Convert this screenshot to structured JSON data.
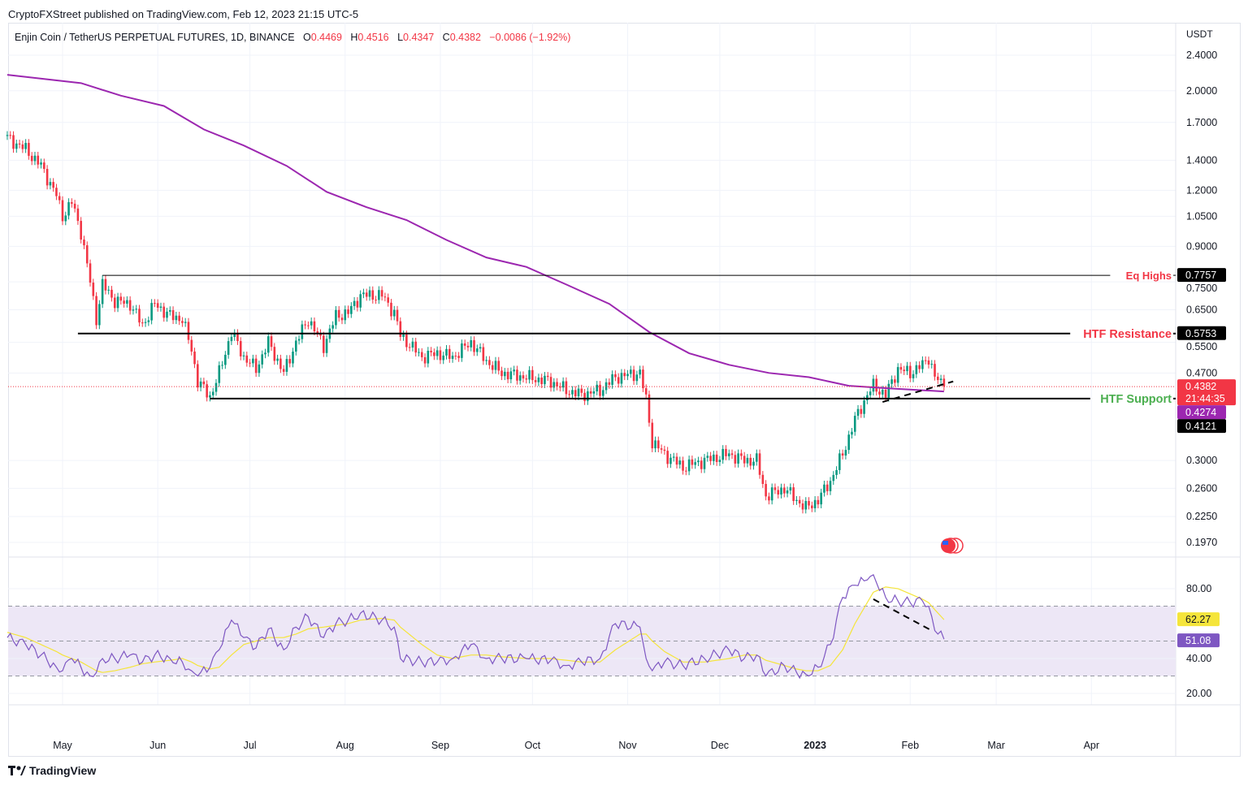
{
  "publisher_line": "CryptoFXStreet published on TradingView.com, Feb 12, 2023 21:15 UTC-5",
  "legend": {
    "symbol": "Enjin Coin / TetherUS PERPETUAL FUTURES, 1D, BINANCE",
    "o_label": "O",
    "o": "0.4469",
    "h_label": "H",
    "h": "0.4516",
    "l_label": "L",
    "l": "0.4347",
    "c_label": "C",
    "c": "0.4382",
    "change": "−0.0086 (−1.92%)"
  },
  "footer": {
    "brand": "TradingView"
  },
  "colors": {
    "up": "#089981",
    "down": "#f23645",
    "ma": "#9c27b0",
    "rsi": "#7e57c2",
    "rsi_ma": "#f5e53b",
    "rsi_band": "#ede7f6",
    "resistance_label": "#f23645",
    "support_label": "#4caf50"
  },
  "chart_data": {
    "type": "candlestick",
    "currency": "USDT",
    "price_scale": "log",
    "ylim": [
      0.197,
      2.4
    ],
    "price_ticks": [
      "2.4000",
      "2.0000",
      "1.7000",
      "1.4000",
      "1.2000",
      "1.0500",
      "0.9000",
      "0.7500",
      "0.6500",
      "0.5500",
      "0.4700",
      "0.3000",
      "0.2600",
      "0.2250",
      "0.1970"
    ],
    "time_ticks": [
      {
        "label": "May",
        "date": "2022-05-01"
      },
      {
        "label": "Jun",
        "date": "2022-06-01"
      },
      {
        "label": "Jul",
        "date": "2022-07-01"
      },
      {
        "label": "Aug",
        "date": "2022-08-01"
      },
      {
        "label": "Sep",
        "date": "2022-09-01"
      },
      {
        "label": "Oct",
        "date": "2022-10-01"
      },
      {
        "label": "Nov",
        "date": "2022-11-01"
      },
      {
        "label": "Dec",
        "date": "2022-12-01"
      },
      {
        "label": "2023",
        "date": "2023-01-01",
        "bold": true
      },
      {
        "label": "Feb",
        "date": "2023-02-01"
      },
      {
        "label": "Mar",
        "date": "2023-03-01"
      },
      {
        "label": "Apr",
        "date": "2023-04-01"
      }
    ],
    "closes": [
      [
        "2022-04-13",
        1.57
      ],
      [
        "2022-04-19",
        1.48
      ],
      [
        "2022-04-24",
        1.36
      ],
      [
        "2022-04-29",
        1.17
      ],
      [
        "2022-05-01",
        1.05
      ],
      [
        "2022-05-04",
        1.13
      ],
      [
        "2022-05-07",
        0.97
      ],
      [
        "2022-05-10",
        0.75
      ],
      [
        "2022-05-12",
        0.62
      ],
      [
        "2022-05-14",
        0.74
      ],
      [
        "2022-05-18",
        0.68
      ],
      [
        "2022-05-23",
        0.67
      ],
      [
        "2022-05-27",
        0.6
      ],
      [
        "2022-05-31",
        0.67
      ],
      [
        "2022-06-05",
        0.63
      ],
      [
        "2022-06-09",
        0.62
      ],
      [
        "2022-06-12",
        0.53
      ],
      [
        "2022-06-14",
        0.45
      ],
      [
        "2022-06-18",
        0.416
      ],
      [
        "2022-06-21",
        0.47
      ],
      [
        "2022-06-25",
        0.58
      ],
      [
        "2022-06-29",
        0.51
      ],
      [
        "2022-07-03",
        0.48
      ],
      [
        "2022-07-07",
        0.55
      ],
      [
        "2022-07-12",
        0.47
      ],
      [
        "2022-07-16",
        0.55
      ],
      [
        "2022-07-20",
        0.62
      ],
      [
        "2022-07-25",
        0.54
      ],
      [
        "2022-07-29",
        0.63
      ],
      [
        "2022-08-02",
        0.64
      ],
      [
        "2022-08-06",
        0.7
      ],
      [
        "2022-08-13",
        0.7
      ],
      [
        "2022-08-17",
        0.64
      ],
      [
        "2022-08-19",
        0.57
      ],
      [
        "2022-08-26",
        0.51
      ],
      [
        "2022-08-31",
        0.52
      ],
      [
        "2022-09-05",
        0.51
      ],
      [
        "2022-09-11",
        0.55
      ],
      [
        "2022-09-16",
        0.5
      ],
      [
        "2022-09-21",
        0.47
      ],
      [
        "2022-09-29",
        0.46
      ],
      [
        "2022-10-07",
        0.45
      ],
      [
        "2022-10-12",
        0.43
      ],
      [
        "2022-10-17",
        0.42
      ],
      [
        "2022-10-23",
        0.43
      ],
      [
        "2022-10-28",
        0.46
      ],
      [
        "2022-11-05",
        0.47
      ],
      [
        "2022-11-07",
        0.41
      ],
      [
        "2022-11-09",
        0.33
      ],
      [
        "2022-11-13",
        0.31
      ],
      [
        "2022-11-19",
        0.29
      ],
      [
        "2022-11-26",
        0.3
      ],
      [
        "2022-12-04",
        0.31
      ],
      [
        "2022-12-09",
        0.3
      ],
      [
        "2022-12-13",
        0.3
      ],
      [
        "2022-12-16",
        0.25
      ],
      [
        "2022-12-22",
        0.26
      ],
      [
        "2022-12-26",
        0.245
      ],
      [
        "2022-12-29",
        0.235
      ],
      [
        "2023-01-02",
        0.245
      ],
      [
        "2023-01-06",
        0.27
      ],
      [
        "2023-01-10",
        0.31
      ],
      [
        "2023-01-14",
        0.37
      ],
      [
        "2023-01-18",
        0.42
      ],
      [
        "2023-01-20",
        0.44
      ],
      [
        "2023-01-24",
        0.42
      ],
      [
        "2023-01-28",
        0.48
      ],
      [
        "2023-02-01",
        0.47
      ],
      [
        "2023-02-05",
        0.49
      ],
      [
        "2023-02-07",
        0.51
      ],
      [
        "2023-02-09",
        0.46
      ],
      [
        "2023-02-12",
        0.4382
      ]
    ],
    "ma200": [
      [
        "2022-04-13",
        2.17
      ],
      [
        "2022-05-07",
        2.08
      ],
      [
        "2022-05-20",
        1.95
      ],
      [
        "2022-06-03",
        1.85
      ],
      [
        "2022-06-16",
        1.64
      ],
      [
        "2022-06-29",
        1.51
      ],
      [
        "2022-07-13",
        1.36
      ],
      [
        "2022-07-26",
        1.19
      ],
      [
        "2022-08-08",
        1.1
      ],
      [
        "2022-08-21",
        1.03
      ],
      [
        "2022-09-03",
        0.93
      ],
      [
        "2022-09-16",
        0.85
      ],
      [
        "2022-09-29",
        0.81
      ],
      [
        "2022-10-12",
        0.74
      ],
      [
        "2022-10-26",
        0.67
      ],
      [
        "2022-11-08",
        0.58
      ],
      [
        "2022-11-21",
        0.52
      ],
      [
        "2022-12-04",
        0.49
      ],
      [
        "2022-12-17",
        0.47
      ],
      [
        "2022-12-30",
        0.46
      ],
      [
        "2023-01-12",
        0.44
      ],
      [
        "2023-01-26",
        0.434
      ],
      [
        "2023-02-12",
        0.4274
      ]
    ],
    "levels": [
      {
        "label": "Eq Highs",
        "value": 0.7757,
        "tag": "0.7757",
        "start": "2022-05-14",
        "color": "#f23645"
      },
      {
        "label": "HTF Resistance",
        "value": 0.5753,
        "tag": "0.5753",
        "start": "2022-05-06",
        "color": "#f23645"
      },
      {
        "label": "HTF Support",
        "value": 0.4121,
        "tag": "0.4121",
        "start": "2022-06-18",
        "color": "#4caf50"
      }
    ],
    "last_price": {
      "value": 0.4382,
      "tag": "0.4382",
      "countdown": "21:44:35"
    },
    "ma_tag": {
      "value": 0.4274,
      "tag": "0.4274"
    },
    "price_trendline": [
      [
        "2023-01-23",
        0.405
      ],
      [
        "2023-02-15",
        0.45
      ]
    ],
    "rsi": {
      "ylim": [
        14,
        92
      ],
      "ticks": [
        "80.00",
        "40.00",
        "20.00"
      ],
      "bands": [
        70,
        50,
        30
      ],
      "values": [
        52,
        48,
        42,
        35,
        33,
        40,
        35,
        30,
        32,
        40,
        40,
        42,
        38,
        42,
        40,
        38,
        33,
        30,
        35,
        45,
        62,
        52,
        46,
        57,
        45,
        58,
        64,
        52,
        60,
        62,
        66,
        62,
        58,
        40,
        38,
        38,
        40,
        48,
        40,
        40,
        40,
        39,
        36,
        38,
        40,
        60,
        58,
        40,
        33,
        38,
        36,
        40,
        45,
        40,
        42,
        30,
        36,
        32,
        31,
        35,
        48,
        75,
        82,
        85,
        88,
        75,
        73,
        72,
        73,
        70,
        56,
        51.08
      ],
      "ma_values": [
        55,
        52,
        48,
        44,
        42,
        40,
        38,
        35,
        33,
        32,
        33,
        35,
        37,
        38,
        39,
        40,
        38,
        36,
        34,
        35,
        42,
        48,
        50,
        52,
        52,
        54,
        57,
        58,
        59,
        60,
        62,
        63,
        62,
        58,
        48,
        42,
        40,
        42,
        42,
        41,
        40,
        40,
        39,
        38,
        38,
        45,
        54,
        54,
        50,
        44,
        38,
        38,
        40,
        42,
        42,
        39,
        36,
        34,
        33,
        33,
        36,
        45,
        60,
        72,
        78,
        81,
        80,
        77,
        74,
        72,
        68,
        62.27
      ],
      "rsi_tag": "51.08",
      "ma_tag": "62.27",
      "trendline": [
        [
          "2023-01-20",
          74
        ],
        [
          "2023-02-08",
          56
        ]
      ]
    }
  }
}
